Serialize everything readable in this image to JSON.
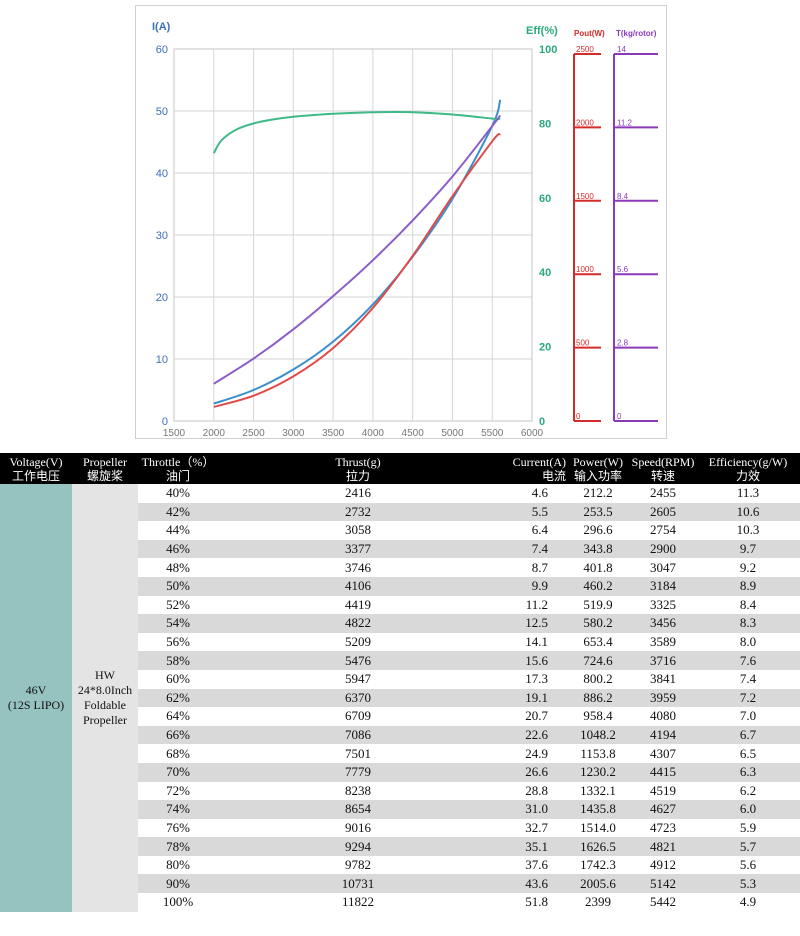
{
  "chart_data": {
    "type": "line",
    "x_ticks": [
      1500,
      2000,
      2500,
      3000,
      3500,
      4000,
      4500,
      5000,
      5500,
      6000
    ],
    "xlim": [
      1500,
      6000
    ],
    "axes": {
      "left": {
        "label": "I(A)",
        "ylim": [
          0,
          60
        ],
        "ticks": [
          0,
          10,
          20,
          30,
          40,
          50,
          60
        ],
        "color": "#3d6fb8"
      },
      "right": {
        "label": "Eff(%)",
        "ylim": [
          0,
          100
        ],
        "ticks": [
          0,
          20,
          40,
          60,
          80,
          100
        ],
        "color": "#2aaa7a"
      },
      "pout": {
        "label": "Pout(W)",
        "ylim": [
          0,
          2500
        ],
        "ticks": [
          "0",
          "500",
          "1000",
          "1500",
          "2000",
          "2500"
        ],
        "color": "#d42b2b"
      },
      "thrust": {
        "label": "T(kg/rotor)",
        "ylim": [
          0,
          14
        ],
        "ticks": [
          "0",
          "2.8",
          "5.6",
          "8.4",
          "11.2",
          "14"
        ],
        "color": "#8a3ab9"
      }
    },
    "series": [
      {
        "key": "current",
        "axis": "left",
        "color": "#3b8fcb",
        "x": [
          2000,
          2500,
          3000,
          3500,
          4000,
          4500,
          5000,
          5500,
          5600
        ],
        "y": [
          2.8,
          5.0,
          8.3,
          12.8,
          18.8,
          26.5,
          35.8,
          47.6,
          51.8
        ]
      },
      {
        "key": "efficiency",
        "axis": "right",
        "color": "#3fb987",
        "x": [
          2000,
          2100,
          2300,
          2600,
          3000,
          3500,
          4000,
          4500,
          5000,
          5500,
          5600
        ],
        "y": [
          72,
          75.5,
          78.5,
          80.5,
          81.8,
          82.6,
          83.0,
          83.0,
          82.4,
          81.3,
          81.2
        ]
      },
      {
        "key": "power_out",
        "axis": "pout",
        "color": "#e04a4a",
        "x": [
          2000,
          2500,
          3000,
          3500,
          4000,
          4500,
          5000,
          5500,
          5600
        ],
        "y": [
          95,
          170,
          300,
          490,
          760,
          1110,
          1510,
          1880,
          1930
        ]
      },
      {
        "key": "thrust",
        "axis": "thrust",
        "color": "#8c5cc8",
        "x": [
          2000,
          2500,
          3000,
          3500,
          4000,
          4500,
          5000,
          5500,
          5600
        ],
        "y": [
          1.4,
          2.35,
          3.45,
          4.7,
          6.05,
          7.55,
          9.2,
          11.1,
          11.5
        ]
      }
    ]
  },
  "table": {
    "headers": [
      [
        "Voltage(V)",
        "工作电压"
      ],
      [
        "Propeller",
        "螺旋桨"
      ],
      [
        "Throttle（%）",
        "油门"
      ],
      [
        "Thrust(g)",
        "拉力"
      ],
      [
        "Current(A)",
        "电流"
      ],
      [
        "Power(W)",
        "输入功率"
      ],
      [
        "Speed(RPM)",
        "转速"
      ],
      [
        "Efficiency(g/W)",
        "力效"
      ]
    ],
    "voltage": [
      "46V",
      "(12S LIPO)"
    ],
    "propeller": [
      "HW",
      "24*8.0Inch",
      "Foldable",
      "Propeller"
    ],
    "rows": [
      [
        "40%",
        "2416",
        "4.6",
        "212.2",
        "2455",
        "11.3"
      ],
      [
        "42%",
        "2732",
        "5.5",
        "253.5",
        "2605",
        "10.6"
      ],
      [
        "44%",
        "3058",
        "6.4",
        "296.6",
        "2754",
        "10.3"
      ],
      [
        "46%",
        "3377",
        "7.4",
        "343.8",
        "2900",
        "9.7"
      ],
      [
        "48%",
        "3746",
        "8.7",
        "401.8",
        "3047",
        "9.2"
      ],
      [
        "50%",
        "4106",
        "9.9",
        "460.2",
        "3184",
        "8.9"
      ],
      [
        "52%",
        "4419",
        "11.2",
        "519.9",
        "3325",
        "8.4"
      ],
      [
        "54%",
        "4822",
        "12.5",
        "580.2",
        "3456",
        "8.3"
      ],
      [
        "56%",
        "5209",
        "14.1",
        "653.4",
        "3589",
        "8.0"
      ],
      [
        "58%",
        "5476",
        "15.6",
        "724.6",
        "3716",
        "7.6"
      ],
      [
        "60%",
        "5947",
        "17.3",
        "800.2",
        "3841",
        "7.4"
      ],
      [
        "62%",
        "6370",
        "19.1",
        "886.2",
        "3959",
        "7.2"
      ],
      [
        "64%",
        "6709",
        "20.7",
        "958.4",
        "4080",
        "7.0"
      ],
      [
        "66%",
        "7086",
        "22.6",
        "1048.2",
        "4194",
        "6.7"
      ],
      [
        "68%",
        "7501",
        "24.9",
        "1153.8",
        "4307",
        "6.5"
      ],
      [
        "70%",
        "7779",
        "26.6",
        "1230.2",
        "4415",
        "6.3"
      ],
      [
        "72%",
        "8238",
        "28.8",
        "1332.1",
        "4519",
        "6.2"
      ],
      [
        "74%",
        "8654",
        "31.0",
        "1435.8",
        "4627",
        "6.0"
      ],
      [
        "76%",
        "9016",
        "32.7",
        "1514.0",
        "4723",
        "5.9"
      ],
      [
        "78%",
        "9294",
        "35.1",
        "1626.5",
        "4821",
        "5.7"
      ],
      [
        "80%",
        "9782",
        "37.6",
        "1742.3",
        "4912",
        "5.6"
      ],
      [
        "90%",
        "10731",
        "43.6",
        "2005.6",
        "5142",
        "5.3"
      ],
      [
        "100%",
        "11822",
        "51.8",
        "2399",
        "5442",
        "4.9"
      ]
    ]
  }
}
